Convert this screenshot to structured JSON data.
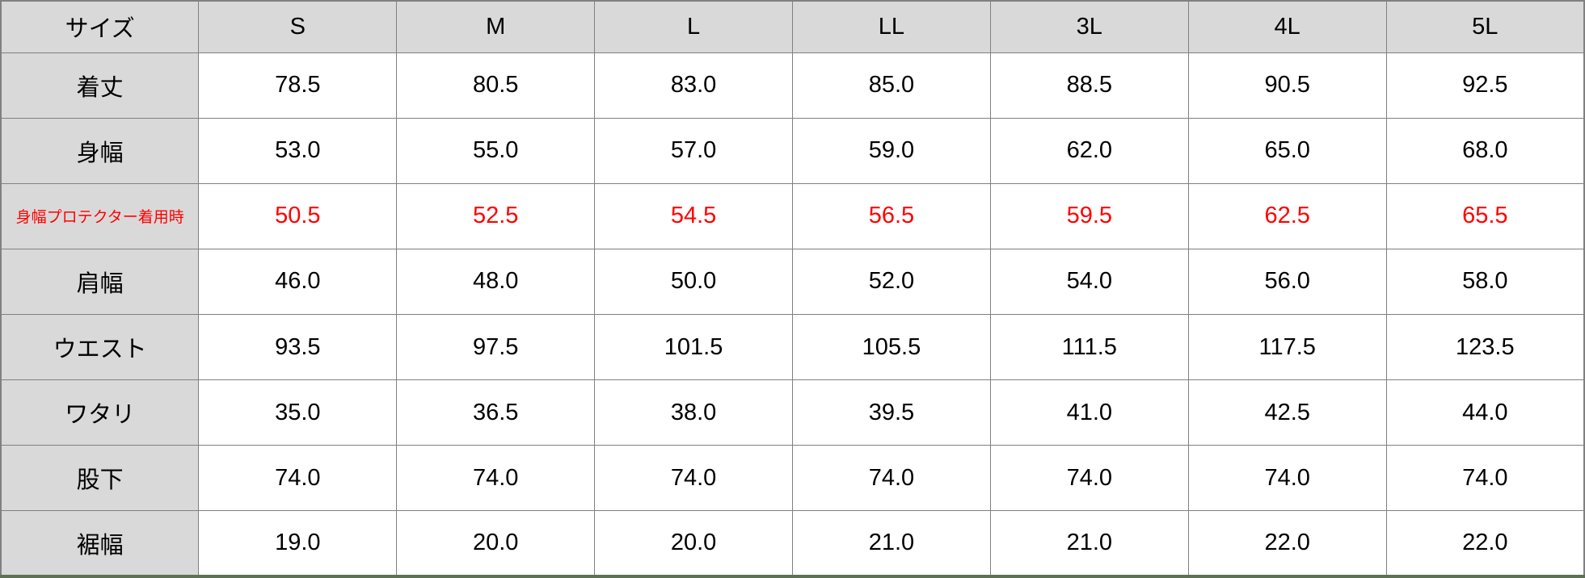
{
  "colors": {
    "header_bg": "#d9d9d9",
    "grid_border": "#808080",
    "highlight_red": "#ff0000",
    "bottom_bar_green": "#5e7156",
    "cell_bg": "#ffffff",
    "text": "#000000"
  },
  "chart_data": {
    "type": "table",
    "columns": [
      "サイズ",
      "S",
      "M",
      "L",
      "LL",
      "3L",
      "4L",
      "5L"
    ],
    "rows": [
      {
        "label": "着丈",
        "highlight": false,
        "values": [
          "78.5",
          "80.5",
          "83.0",
          "85.0",
          "88.5",
          "90.5",
          "92.5"
        ]
      },
      {
        "label": "身幅",
        "highlight": false,
        "values": [
          "53.0",
          "55.0",
          "57.0",
          "59.0",
          "62.0",
          "65.0",
          "68.0"
        ]
      },
      {
        "label": "身幅プロテクター着用時",
        "highlight": true,
        "values": [
          "50.5",
          "52.5",
          "54.5",
          "56.5",
          "59.5",
          "62.5",
          "65.5"
        ]
      },
      {
        "label": "肩幅",
        "highlight": false,
        "values": [
          "46.0",
          "48.0",
          "50.0",
          "52.0",
          "54.0",
          "56.0",
          "58.0"
        ]
      },
      {
        "label": "ウエスト",
        "highlight": false,
        "values": [
          "93.5",
          "97.5",
          "101.5",
          "105.5",
          "111.5",
          "117.5",
          "123.5"
        ]
      },
      {
        "label": "ワタリ",
        "highlight": false,
        "values": [
          "35.0",
          "36.5",
          "38.0",
          "39.5",
          "41.0",
          "42.5",
          "44.0"
        ]
      },
      {
        "label": "股下",
        "highlight": false,
        "values": [
          "74.0",
          "74.0",
          "74.0",
          "74.0",
          "74.0",
          "74.0",
          "74.0"
        ]
      },
      {
        "label": "裾幅",
        "highlight": false,
        "values": [
          "19.0",
          "20.0",
          "20.0",
          "21.0",
          "21.0",
          "22.0",
          "22.0"
        ]
      }
    ]
  }
}
